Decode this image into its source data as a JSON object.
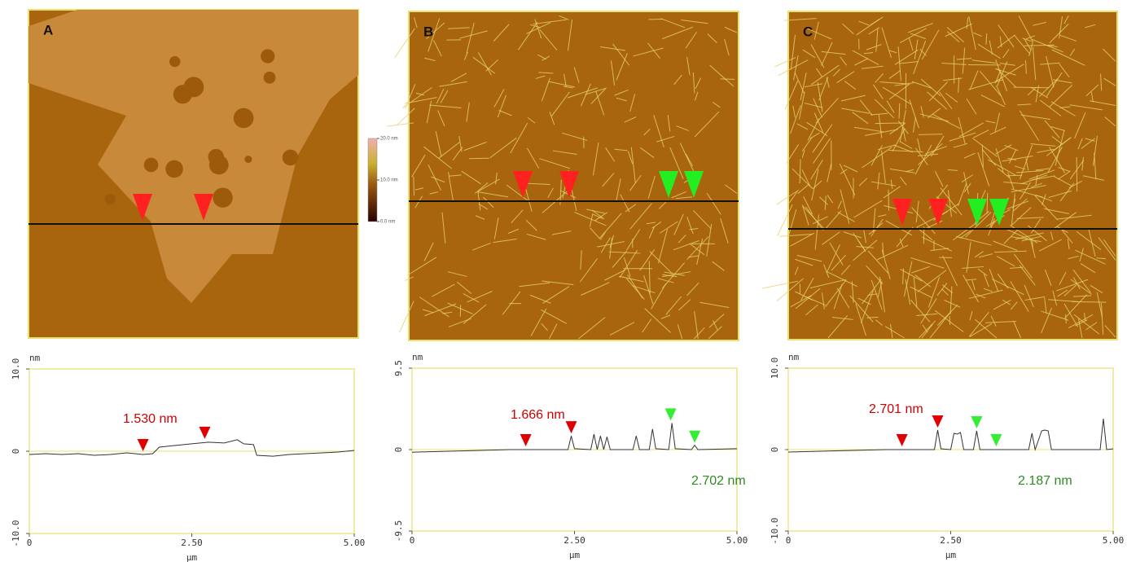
{
  "panels": [
    {
      "label": "A"
    },
    {
      "label": "B"
    },
    {
      "label": "C"
    }
  ],
  "colorbar": {
    "ylim": [
      0,
      20
    ],
    "ticks": [
      {
        "value": 20,
        "label": "20.0 nm"
      },
      {
        "value": 10,
        "label": "10.0 nm"
      },
      {
        "value": 0,
        "label": "0.0 nm"
      }
    ]
  },
  "chart_data": [
    {
      "type": "line",
      "x_label": "µm",
      "y_label": "nm",
      "xlim": [
        0,
        5
      ],
      "xticks": [
        0,
        {
          "value": 2.5,
          "label": "2.50"
        },
        {
          "value": 5,
          "label": "5.00"
        }
      ],
      "ylim": [
        -10,
        10
      ],
      "yticks": [
        {
          "value": -10,
          "label": "-10.0"
        },
        0,
        {
          "value": 10,
          "label": "10.0"
        }
      ],
      "series": [
        {
          "color": "#333333",
          "x": [
            0,
            0.25,
            0.5,
            0.75,
            1,
            1.25,
            1.5,
            1.75,
            1.9,
            2.0,
            2.25,
            2.5,
            2.75,
            3.0,
            3.2,
            3.3,
            3.45,
            3.5,
            3.75,
            4,
            4.25,
            4.5,
            4.75,
            5
          ],
          "values": [
            -0.4,
            -0.3,
            -0.4,
            -0.3,
            -0.5,
            -0.4,
            -0.2,
            -0.4,
            -0.3,
            0.5,
            0.7,
            0.9,
            1.1,
            1.0,
            1.4,
            0.9,
            0.8,
            -0.5,
            -0.6,
            -0.4,
            -0.3,
            -0.2,
            -0.1,
            0.1
          ]
        }
      ],
      "markers": [
        {
          "x": 1.75,
          "y": -0.3,
          "color": "#e00000"
        },
        {
          "x": 2.7,
          "y": 1.2,
          "color": "#e00000"
        }
      ],
      "annotations": [
        {
          "text": "1.530 nm",
          "color": "#d00000"
        }
      ]
    },
    {
      "type": "line",
      "x_label": "µm",
      "y_label": "nm",
      "xlim": [
        0,
        5
      ],
      "xticks": [
        0,
        {
          "value": 2.5,
          "label": "2.50"
        },
        {
          "value": 5,
          "label": "5.00"
        }
      ],
      "ylim": [
        -9.5,
        9.5
      ],
      "yticks": [
        -9.5,
        0,
        9.5
      ],
      "series": [
        {
          "color": "#333333",
          "x": [
            0,
            0.5,
            1,
            1.5,
            2,
            2.4,
            2.45,
            2.5,
            2.75,
            2.8,
            2.85,
            2.9,
            2.95,
            3.0,
            3.05,
            3.4,
            3.45,
            3.5,
            3.65,
            3.7,
            3.75,
            3.95,
            4.0,
            4.05,
            4.3,
            4.35,
            4.4,
            5
          ],
          "values": [
            -0.3,
            -0.2,
            -0.1,
            0,
            0,
            0,
            1.6,
            0.1,
            0,
            1.8,
            0,
            1.6,
            0,
            1.5,
            0,
            0,
            1.6,
            0,
            0,
            2.4,
            0.1,
            0,
            3.1,
            0.1,
            0,
            0.5,
            0,
            0.1
          ]
        }
      ],
      "markers": [
        {
          "x": 1.75,
          "y": 0.1,
          "color": "#e00000"
        },
        {
          "x": 2.45,
          "y": 1.6,
          "color": "#e00000"
        },
        {
          "x": 3.98,
          "y": 3.1,
          "color": "#33ee33"
        },
        {
          "x": 4.35,
          "y": 0.5,
          "color": "#33ee33"
        }
      ],
      "annotations": [
        {
          "text": "1.666 nm",
          "color": "#d00000"
        },
        {
          "text": "2.702 nm",
          "color": "#2e8b22"
        }
      ]
    },
    {
      "type": "line",
      "x_label": "µm",
      "y_label": "nm",
      "xlim": [
        0,
        5
      ],
      "xticks": [
        0,
        {
          "value": 2.5,
          "label": "2.50"
        },
        {
          "value": 5,
          "label": "5.00"
        }
      ],
      "ylim": [
        -10,
        10
      ],
      "yticks": [
        {
          "value": -10,
          "label": "-10.0"
        },
        0,
        {
          "value": 10,
          "label": "10.0"
        }
      ],
      "series": [
        {
          "color": "#333333",
          "x": [
            0,
            0.5,
            1,
            1.5,
            2,
            2.25,
            2.3,
            2.35,
            2.5,
            2.55,
            2.6,
            2.65,
            2.7,
            2.85,
            2.9,
            2.95,
            3.7,
            3.75,
            3.8,
            3.9,
            3.95,
            4.0,
            4.05,
            4.8,
            4.85,
            4.9,
            5
          ],
          "values": [
            -0.3,
            -0.2,
            -0.1,
            0,
            0,
            0,
            2.4,
            0.1,
            0,
            2,
            1.9,
            2.1,
            0,
            0,
            2.3,
            0,
            0,
            2,
            0,
            2.3,
            2.4,
            2.3,
            0,
            0,
            3.8,
            0,
            0.1
          ]
        }
      ],
      "markers": [
        {
          "x": 1.75,
          "y": 0.1,
          "color": "#e00000"
        },
        {
          "x": 2.3,
          "y": 2.4,
          "color": "#e00000"
        },
        {
          "x": 2.9,
          "y": 2.3,
          "color": "#33ee33"
        },
        {
          "x": 3.2,
          "y": 0.1,
          "color": "#33ee33"
        }
      ],
      "annotations": [
        {
          "text": "2.701 nm",
          "color": "#d00000"
        },
        {
          "text": "2.187 nm",
          "color": "#2e8b22"
        }
      ]
    }
  ]
}
